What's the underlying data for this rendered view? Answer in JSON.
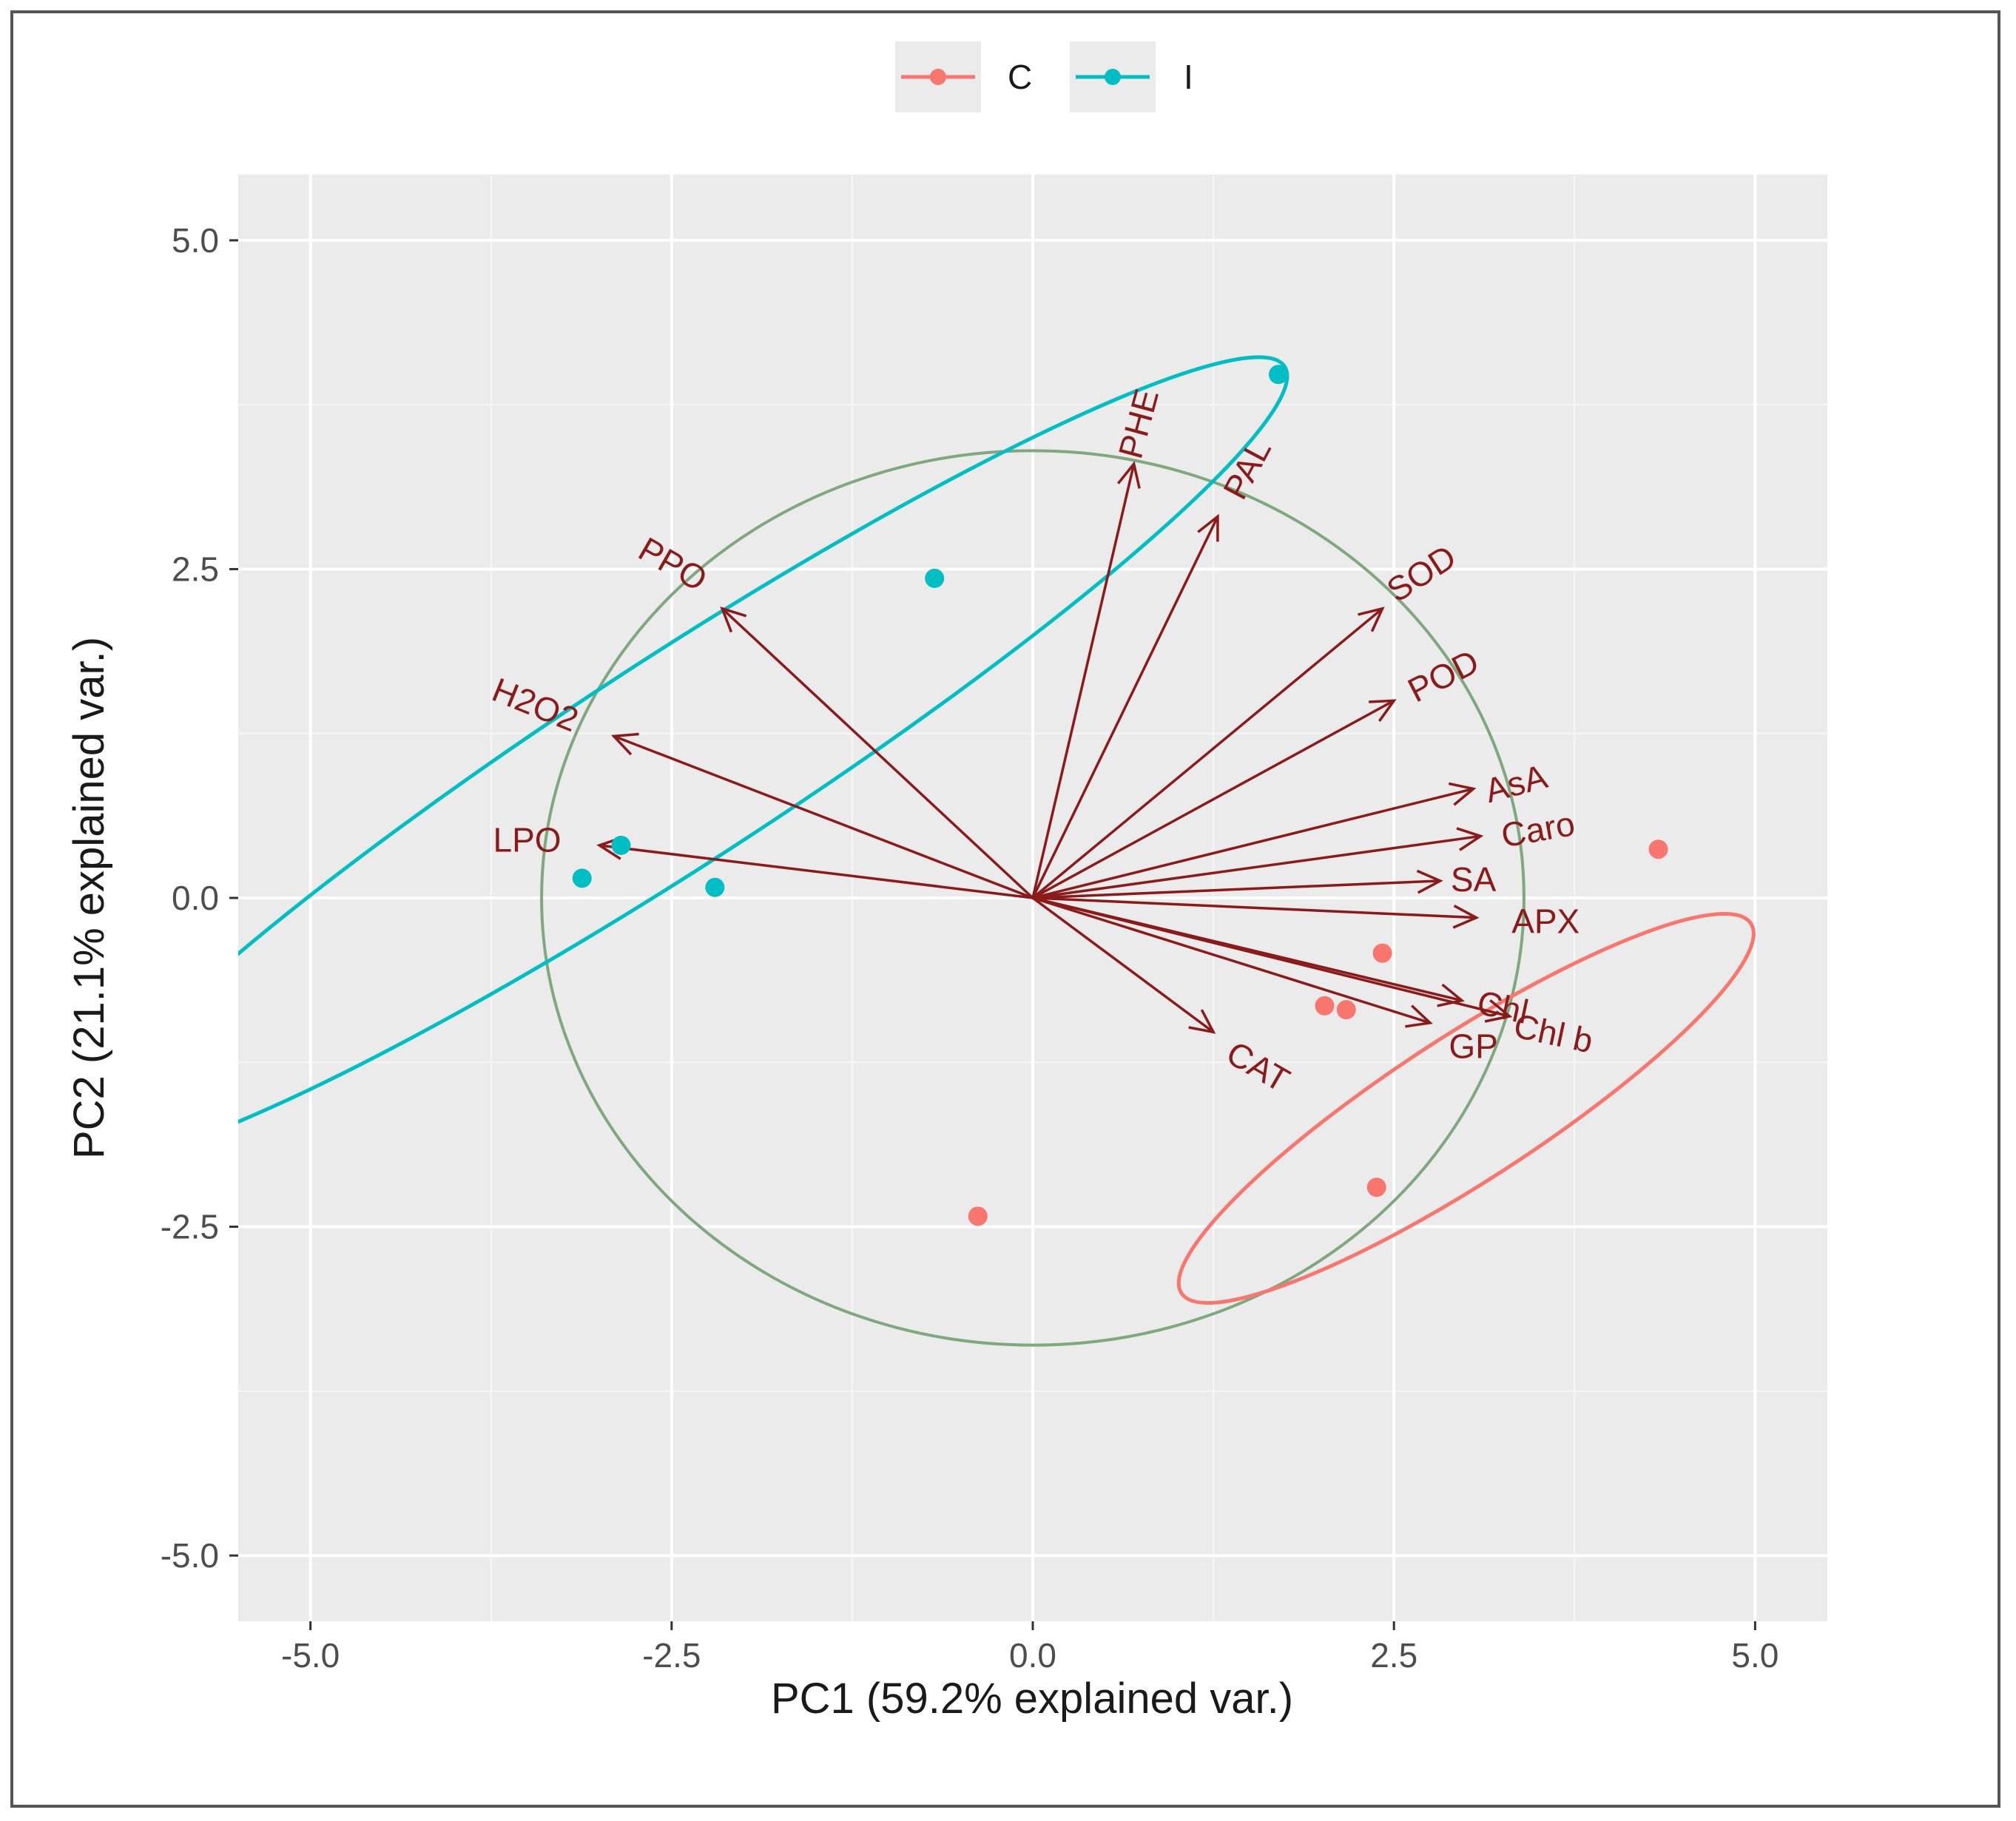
{
  "chart_data": {
    "type": "scatter",
    "subtype": "pca-biplot",
    "title": "",
    "xlabel": "PC1 (59.2% explained var.)",
    "ylabel": "PC2 (21.1% explained var.)",
    "xlim": [
      -5.5,
      5.5
    ],
    "ylim": [
      -5.5,
      5.5
    ],
    "xticks": [
      -5.0,
      -2.5,
      0.0,
      2.5,
      5.0
    ],
    "yticks": [
      -5.0,
      -2.5,
      0.0,
      2.5,
      5.0
    ],
    "xtick_labels": [
      "-5.0",
      "-2.5",
      "0.0",
      "2.5",
      "5.0"
    ],
    "ytick_labels": [
      "-5.0",
      "-2.5",
      "0.0",
      "2.5",
      "5.0"
    ],
    "grid": true,
    "legend_position": "top",
    "series": [
      {
        "name": "C",
        "color": "#f8766d",
        "points": [
          [
            4.33,
            0.37
          ],
          [
            2.42,
            -0.42
          ],
          [
            2.02,
            -0.82
          ],
          [
            2.17,
            -0.85
          ],
          [
            2.38,
            -2.2
          ],
          [
            -0.38,
            -2.42
          ]
        ],
        "ellipse": {
          "center": [
            3.0,
            -1.6
          ],
          "rx": 2.35,
          "ry": 0.55,
          "angle_deg": 33
        }
      },
      {
        "name": "I",
        "color": "#00bfc4",
        "points": [
          [
            1.7,
            3.98
          ],
          [
            -0.68,
            2.43
          ],
          [
            -2.85,
            0.4
          ],
          [
            -3.12,
            0.15
          ],
          [
            -2.2,
            0.08
          ]
        ],
        "ellipse": {
          "center": [
            -2.45,
            1.05
          ],
          "rx": 5.0,
          "ry": 0.78,
          "angle_deg": 33
        }
      }
    ],
    "correlation_circle": {
      "center": [
        0,
        0
      ],
      "radius": 3.4,
      "color": "#7fa87f"
    },
    "arrow_color": "#8b1a1a",
    "variables": [
      {
        "name": "PHE",
        "end": [
          0.7,
          3.3
        ],
        "label_at": [
          0.75,
          3.6
        ],
        "rotate": -75
      },
      {
        "name": "PAL",
        "end": [
          1.28,
          2.9
        ],
        "label_at": [
          1.5,
          3.25
        ],
        "rotate": -62
      },
      {
        "name": "SOD",
        "end": [
          2.42,
          2.2
        ],
        "label_at": [
          2.7,
          2.45
        ],
        "rotate": -33
      },
      {
        "name": "POD",
        "end": [
          2.5,
          1.5
        ],
        "label_at": [
          2.85,
          1.67
        ],
        "rotate": -27
      },
      {
        "name": "AsA",
        "end": [
          3.05,
          0.83
        ],
        "label_at": [
          3.35,
          0.85
        ],
        "rotate": -15
      },
      {
        "name": "Caro",
        "end": [
          3.1,
          0.47
        ],
        "label_at": [
          3.5,
          0.5
        ],
        "rotate": -10
      },
      {
        "name": "SA",
        "end": [
          2.82,
          0.13
        ],
        "label_at": [
          3.05,
          0.12
        ],
        "rotate": 0
      },
      {
        "name": "APX",
        "end": [
          3.07,
          -0.15
        ],
        "label_at": [
          3.55,
          -0.2
        ],
        "rotate": 0
      },
      {
        "name": "Chl",
        "end": [
          2.97,
          -0.78
        ],
        "label_at": [
          3.25,
          -0.85
        ],
        "rotate": 12
      },
      {
        "name": "Chl b",
        "end": [
          3.3,
          -0.9
        ],
        "label_at": [
          3.6,
          -1.05
        ],
        "rotate": 12
      },
      {
        "name": "GP",
        "end": [
          2.75,
          -0.95
        ],
        "label_at": [
          3.05,
          -1.15
        ],
        "rotate": 0
      },
      {
        "name": "CAT",
        "end": [
          1.25,
          -1.02
        ],
        "label_at": [
          1.55,
          -1.3
        ],
        "rotate": 30
      },
      {
        "name": "LPO",
        "end": [
          -3.0,
          0.4
        ],
        "label_at": [
          -3.5,
          0.42
        ],
        "rotate": 0
      },
      {
        "name": "H2O2",
        "end": [
          -2.9,
          1.23
        ],
        "label_at": [
          -3.45,
          1.45
        ],
        "rotate": 22
      },
      {
        "name": "PPO",
        "end": [
          -2.15,
          2.2
        ],
        "label_at": [
          -2.5,
          2.52
        ],
        "rotate": 30
      }
    ]
  }
}
